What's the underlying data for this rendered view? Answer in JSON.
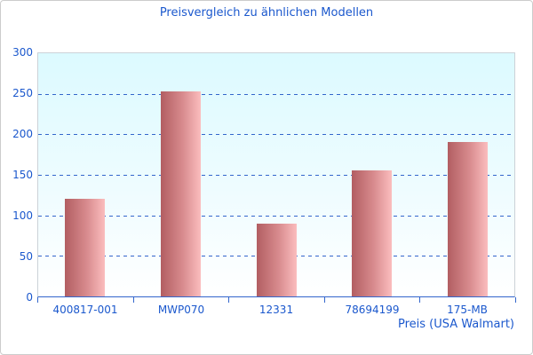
{
  "page": {
    "background": "#ffffff",
    "frame_border": "#cccccc"
  },
  "chart_data": {
    "type": "bar",
    "title": "Preisvergleich zu ähnlichen Modellen",
    "categories": [
      "400817-001",
      "MWP070",
      "12331",
      "78694199",
      "175-MB"
    ],
    "values": [
      120,
      253,
      90,
      155,
      190
    ],
    "xlabel": "Preis (USA Walmart)",
    "ylabel": "",
    "ylim": [
      0,
      300
    ],
    "yticks": [
      0,
      50,
      100,
      150,
      200,
      250,
      300
    ],
    "grid": "horizontal dashed lines at interior ticks",
    "legend_position": "none",
    "colors": {
      "title_text": "#1b58cd",
      "axis_text": "#1b58cd",
      "gridline": "#3366cc",
      "axis_line": "#3366cc",
      "plot_border": "#ccd2d8",
      "plot_bg_top": "#dcfaff",
      "plot_bg_bottom": "#ffffff",
      "bar_gradient_left": "#b25e62",
      "bar_gradient_right": "#fbbdbe"
    }
  }
}
